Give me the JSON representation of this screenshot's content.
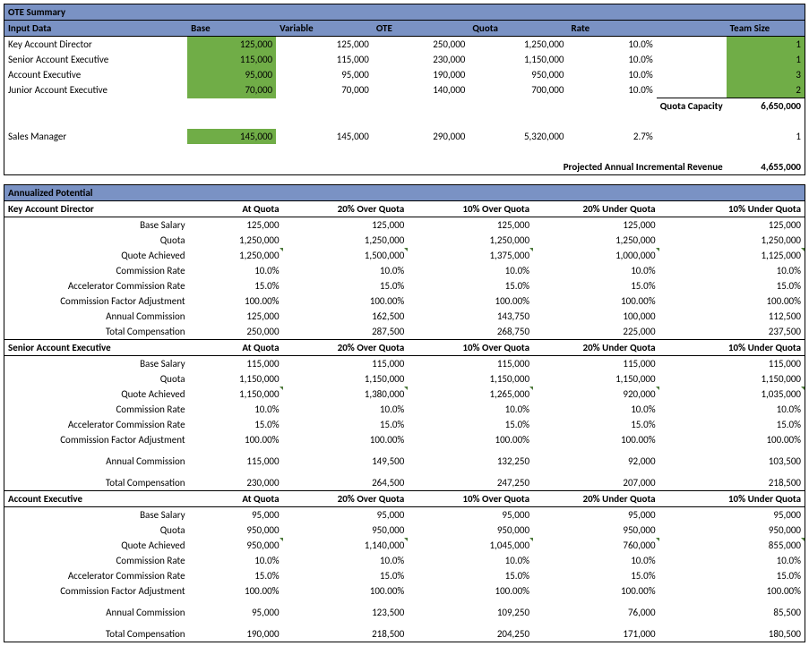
{
  "summary": {
    "title": "OTE Summary",
    "headers": [
      "Input Data",
      "Base",
      "Variable",
      "OTE",
      "Quota",
      "Rate",
      "Team Size"
    ],
    "rows": [
      {
        "role": "Key Account Director",
        "base": "125,000",
        "variable": "125,000",
        "ote": "250,000",
        "quota": "1,250,000",
        "rate": "10.0%",
        "team": "1"
      },
      {
        "role": "Senior Account Executive",
        "base": "115,000",
        "variable": "115,000",
        "ote": "230,000",
        "quota": "1,150,000",
        "rate": "10.0%",
        "team": "1"
      },
      {
        "role": "Account Executive",
        "base": "95,000",
        "variable": "95,000",
        "ote": "190,000",
        "quota": "950,000",
        "rate": "10.0%",
        "team": "3"
      },
      {
        "role": "Junior Account Executive",
        "base": "70,000",
        "variable": "70,000",
        "ote": "140,000",
        "quota": "700,000",
        "rate": "10.0%",
        "team": "2"
      }
    ],
    "quota_capacity_label": "Quota Capacity",
    "quota_capacity_value": "6,650,000",
    "manager": {
      "role": "Sales Manager",
      "base": "145,000",
      "variable": "145,000",
      "ote": "290,000",
      "quota": "5,320,000",
      "rate": "2.7%",
      "team": "1"
    },
    "projected_label": "Projected Annual Incremental Revenue",
    "projected_value": "4,655,000"
  },
  "potential": {
    "title": "Annualized Potential",
    "scenario_headers": [
      "At Quota",
      "20% Over Quota",
      "10% Over Quota",
      "20% Under Quota",
      "10% Under Quota"
    ],
    "row_labels": [
      "Base Salary",
      "Quota",
      "Quote Achieved",
      "Commission Rate",
      "Accelerator Commission Rate",
      "Commission Factor Adjustment",
      "Annual Commission",
      "Total Compensation"
    ],
    "roles": [
      {
        "name": "Key Account Director",
        "rows": [
          [
            "125,000",
            "125,000",
            "125,000",
            "125,000",
            "125,000"
          ],
          [
            "1,250,000",
            "1,250,000",
            "1,250,000",
            "1,250,000",
            "1,250,000"
          ],
          [
            "1,250,000",
            "1,500,000",
            "1,375,000",
            "1,000,000",
            "1,125,000"
          ],
          [
            "10.0%",
            "10.0%",
            "10.0%",
            "10.0%",
            "10.0%"
          ],
          [
            "15.0%",
            "15.0%",
            "15.0%",
            "15.0%",
            "15.0%"
          ],
          [
            "100.00%",
            "100.00%",
            "100.00%",
            "100.00%",
            "100.00%"
          ],
          [
            "125,000",
            "162,500",
            "143,750",
            "100,000",
            "112,500"
          ],
          [
            "250,000",
            "287,500",
            "268,750",
            "225,000",
            "237,500"
          ]
        ],
        "tight": true
      },
      {
        "name": "Senior Account Executive",
        "rows": [
          [
            "115,000",
            "115,000",
            "115,000",
            "115,000",
            "115,000"
          ],
          [
            "1,150,000",
            "1,150,000",
            "1,150,000",
            "1,150,000",
            "1,150,000"
          ],
          [
            "1,150,000",
            "1,380,000",
            "1,265,000",
            "920,000",
            "1,035,000"
          ],
          [
            "10.0%",
            "10.0%",
            "10.0%",
            "10.0%",
            "10.0%"
          ],
          [
            "15.0%",
            "15.0%",
            "15.0%",
            "15.0%",
            "15.0%"
          ],
          [
            "100.00%",
            "100.00%",
            "100.00%",
            "100.00%",
            "100.00%"
          ],
          [
            "115,000",
            "149,500",
            "132,250",
            "92,000",
            "103,500"
          ],
          [
            "230,000",
            "264,500",
            "247,250",
            "207,000",
            "218,500"
          ]
        ],
        "tight": false
      },
      {
        "name": "Account Executive",
        "rows": [
          [
            "95,000",
            "95,000",
            "95,000",
            "95,000",
            "95,000"
          ],
          [
            "950,000",
            "950,000",
            "950,000",
            "950,000",
            "950,000"
          ],
          [
            "950,000",
            "1,140,000",
            "1,045,000",
            "760,000",
            "855,000"
          ],
          [
            "10.0%",
            "10.0%",
            "10.0%",
            "10.0%",
            "10.0%"
          ],
          [
            "15.0%",
            "15.0%",
            "15.0%",
            "15.0%",
            "15.0%"
          ],
          [
            "100.00%",
            "100.00%",
            "100.00%",
            "100.00%",
            "100.00%"
          ],
          [
            "95,000",
            "123,500",
            "109,250",
            "76,000",
            "85,500"
          ],
          [
            "190,000",
            "218,500",
            "204,250",
            "171,000",
            "180,500"
          ]
        ],
        "tight": false
      }
    ]
  }
}
